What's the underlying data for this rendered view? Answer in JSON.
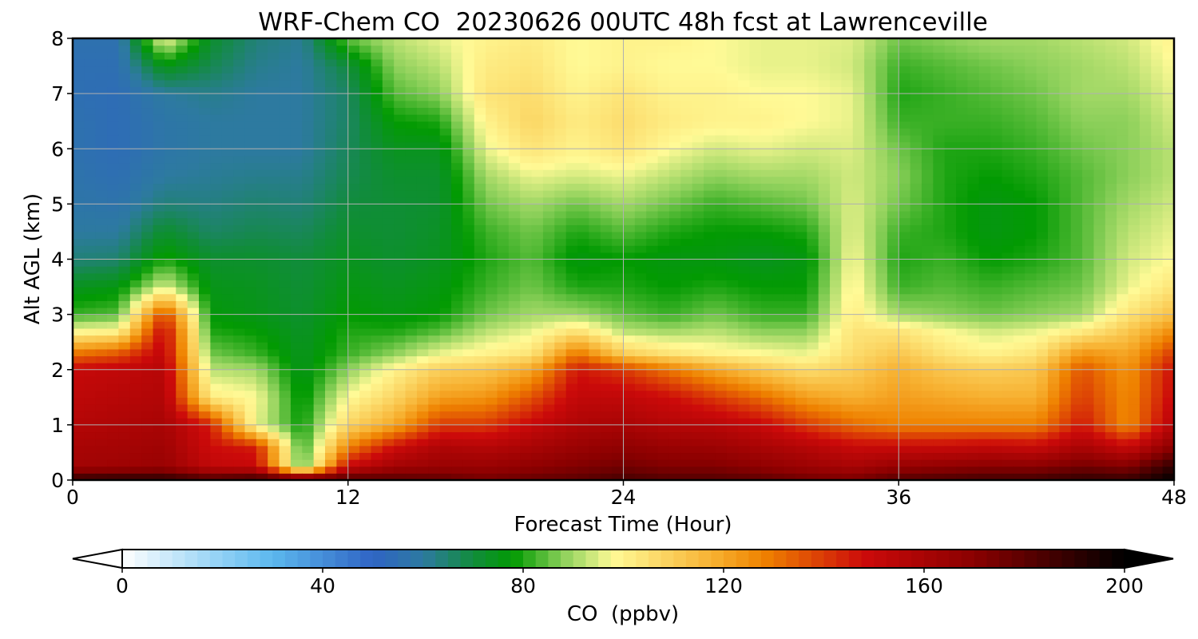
{
  "chart_data": {
    "type": "heatmap",
    "title": "WRF-Chem CO  20230626 00UTC 48h fcst at Lawrenceville",
    "xlabel": "Forecast Time (Hour)",
    "ylabel": "Alt AGL (km)",
    "xlim": [
      0,
      48
    ],
    "ylim": [
      0,
      8
    ],
    "x_ticks": [
      0,
      12,
      24,
      36,
      48
    ],
    "y_ticks": [
      0,
      1,
      2,
      3,
      4,
      5,
      6,
      7,
      8
    ],
    "grid": true,
    "colorbar": {
      "label": "CO  (ppbv)",
      "range": [
        0,
        200
      ],
      "ticks": [
        0,
        40,
        80,
        120,
        160,
        200
      ],
      "extend": "both",
      "colormap_stops": [
        {
          "value": 0,
          "color": "#ffffff"
        },
        {
          "value": 20,
          "color": "#8fd0f5"
        },
        {
          "value": 30,
          "color": "#5cb8ee"
        },
        {
          "value": 50,
          "color": "#2f64c4"
        },
        {
          "value": 60,
          "color": "#2d7aa0"
        },
        {
          "value": 70,
          "color": "#118c3c"
        },
        {
          "value": 78,
          "color": "#029a02"
        },
        {
          "value": 88,
          "color": "#8cd05a"
        },
        {
          "value": 98,
          "color": "#fffa96"
        },
        {
          "value": 118,
          "color": "#f7b030"
        },
        {
          "value": 128,
          "color": "#ef8200"
        },
        {
          "value": 148,
          "color": "#cc0a0a"
        },
        {
          "value": 170,
          "color": "#8a0000"
        },
        {
          "value": 200,
          "color": "#000000"
        }
      ]
    },
    "x": [
      0,
      2,
      4,
      6,
      8,
      10,
      12,
      14,
      16,
      18,
      20,
      22,
      24,
      26,
      28,
      30,
      32,
      34,
      36,
      38,
      40,
      42,
      44,
      46,
      48
    ],
    "y": [
      0,
      0.25,
      0.6,
      1,
      1.5,
      2,
      2.3,
      2.7,
      3,
      3.5,
      4,
      4.5,
      5,
      5.5,
      6,
      6.5,
      7,
      7.5,
      8
    ],
    "z": [
      [
        190,
        162,
        160,
        156,
        153,
        150,
        130,
        98,
        82,
        74,
        64,
        60,
        58,
        57,
        56,
        56,
        55,
        55,
        56
      ],
      [
        192,
        163,
        161,
        158,
        155,
        152,
        135,
        100,
        84,
        76,
        65,
        60,
        57,
        55,
        54,
        54,
        54,
        55,
        56
      ],
      [
        192,
        165,
        163,
        160,
        157,
        155,
        152,
        150,
        140,
        95,
        80,
        72,
        64,
        60,
        58,
        58,
        60,
        75,
        98
      ],
      [
        185,
        152,
        148,
        145,
        102,
        92,
        86,
        80,
        77,
        75,
        72,
        66,
        63,
        61,
        60,
        60,
        62,
        68,
        72
      ],
      [
        190,
        150,
        145,
        96,
        98,
        90,
        82,
        78,
        75,
        74,
        72,
        68,
        65,
        62,
        60,
        60,
        60,
        62,
        64
      ],
      [
        188,
        82,
        80,
        78,
        76,
        74,
        74,
        73,
        72,
        71,
        70,
        67,
        64,
        62,
        60,
        60,
        60,
        60,
        61
      ],
      [
        185,
        150,
        128,
        108,
        98,
        88,
        82,
        80,
        78,
        76,
        74,
        72,
        70,
        68,
        67,
        66,
        66,
        70,
        85
      ],
      [
        182,
        162,
        148,
        120,
        108,
        100,
        88,
        80,
        76,
        74,
        72,
        71,
        71,
        72,
        74,
        78,
        84,
        88,
        92
      ],
      [
        180,
        165,
        158,
        140,
        122,
        110,
        96,
        84,
        78,
        76,
        74,
        73,
        72,
        72,
        74,
        80,
        88,
        92,
        96
      ],
      [
        175,
        165,
        156,
        140,
        124,
        112,
        100,
        92,
        86,
        82,
        80,
        82,
        86,
        90,
        96,
        100,
        104,
        102,
        100
      ],
      [
        178,
        168,
        160,
        150,
        136,
        120,
        104,
        96,
        90,
        86,
        84,
        86,
        90,
        96,
        104,
        108,
        106,
        104,
        102
      ],
      [
        180,
        172,
        165,
        158,
        152,
        146,
        130,
        105,
        90,
        80,
        76,
        80,
        86,
        94,
        100,
        102,
        100,
        98,
        98
      ],
      [
        185,
        175,
        168,
        160,
        152,
        140,
        110,
        92,
        85,
        80,
        78,
        84,
        90,
        96,
        104,
        106,
        104,
        100,
        100
      ],
      [
        182,
        172,
        165,
        156,
        148,
        130,
        104,
        90,
        82,
        78,
        76,
        80,
        86,
        92,
        98,
        102,
        100,
        98,
        100
      ],
      [
        182,
        172,
        164,
        155,
        140,
        120,
        100,
        92,
        86,
        80,
        76,
        78,
        82,
        88,
        94,
        100,
        100,
        98,
        98
      ],
      [
        180,
        168,
        160,
        150,
        132,
        112,
        98,
        88,
        82,
        78,
        74,
        78,
        84,
        90,
        96,
        100,
        98,
        96,
        96
      ],
      [
        176,
        164,
        156,
        140,
        122,
        106,
        96,
        88,
        82,
        78,
        76,
        80,
        86,
        90,
        94,
        98,
        98,
        96,
        96
      ],
      [
        174,
        160,
        150,
        132,
        118,
        110,
        106,
        104,
        102,
        100,
        98,
        96,
        95,
        94,
        95,
        96,
        96,
        94,
        95
      ],
      [
        182,
        166,
        150,
        128,
        122,
        118,
        112,
        104,
        90,
        82,
        80,
        82,
        86,
        88,
        86,
        82,
        80,
        82,
        86
      ],
      [
        184,
        168,
        150,
        128,
        120,
        112,
        104,
        98,
        88,
        84,
        82,
        80,
        80,
        80,
        80,
        82,
        82,
        84,
        88
      ],
      [
        186,
        170,
        152,
        128,
        118,
        110,
        100,
        94,
        86,
        82,
        78,
        76,
        76,
        78,
        80,
        82,
        84,
        86,
        90
      ],
      [
        186,
        170,
        150,
        128,
        118,
        112,
        104,
        96,
        88,
        84,
        80,
        78,
        78,
        80,
        82,
        84,
        86,
        88,
        90
      ],
      [
        190,
        175,
        160,
        146,
        140,
        136,
        124,
        102,
        90,
        86,
        84,
        84,
        84,
        84,
        86,
        88,
        90,
        90,
        92
      ],
      [
        188,
        172,
        150,
        126,
        126,
        124,
        120,
        112,
        104,
        96,
        94,
        92,
        90,
        88,
        88,
        88,
        90,
        92,
        94
      ],
      [
        200,
        190,
        170,
        156,
        150,
        148,
        140,
        126,
        114,
        104,
        98,
        96,
        94,
        92,
        92,
        94,
        96,
        98,
        100
      ]
    ]
  }
}
